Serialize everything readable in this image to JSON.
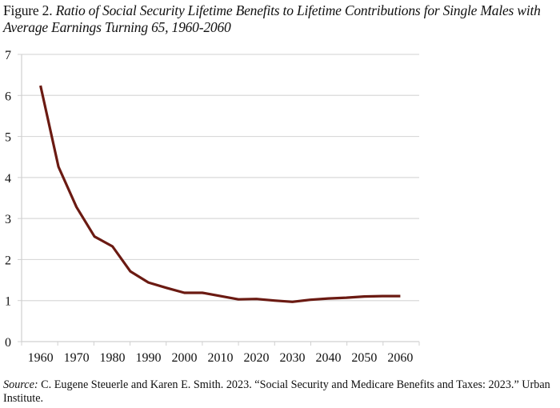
{
  "figure": {
    "label": "Figure 2.",
    "title": "Ratio of Social Security Lifetime Benefits to Lifetime Contributions for Single Males with Average Earnings Turning 65, 1960-2060"
  },
  "source": {
    "label": "Source:",
    "text": "C. Eugene Steuerle and Karen E. Smith. 2023. “Social Security and Medicare Benefits and Taxes: 2023.” Urban Institute."
  },
  "chart_data": {
    "type": "line",
    "title": "Ratio of Social Security Lifetime Benefits to Lifetime Contributions for Single Males with Average Earnings Turning 65, 1960-2060",
    "xlabel": "",
    "ylabel": "",
    "x": [
      1960,
      1965,
      1970,
      1975,
      1980,
      1985,
      1990,
      1995,
      2000,
      2005,
      2010,
      2015,
      2020,
      2025,
      2030,
      2035,
      2040,
      2045,
      2050,
      2055,
      2060
    ],
    "series": [
      {
        "name": "Ratio of lifetime benefits to lifetime contributions",
        "color": "#6b1a12",
        "values": [
          6.24,
          4.26,
          3.28,
          2.56,
          2.32,
          1.71,
          1.44,
          1.31,
          1.19,
          1.19,
          1.11,
          1.03,
          1.04,
          1.0,
          0.97,
          1.02,
          1.05,
          1.07,
          1.1,
          1.11,
          1.11
        ]
      }
    ],
    "xlim": [
      1960,
      2060
    ],
    "ylim": [
      0,
      7
    ],
    "xticks": [
      "1960",
      "1970",
      "1980",
      "1990",
      "2000",
      "2010",
      "2020",
      "2030",
      "2040",
      "2050",
      "2060"
    ],
    "yticks": [
      "0",
      "1",
      "2",
      "3",
      "4",
      "5",
      "6",
      "7"
    ],
    "grid": true,
    "legend": "none",
    "gridline_color": "#d9d9d9",
    "axis_color": "#d0d0d0"
  }
}
